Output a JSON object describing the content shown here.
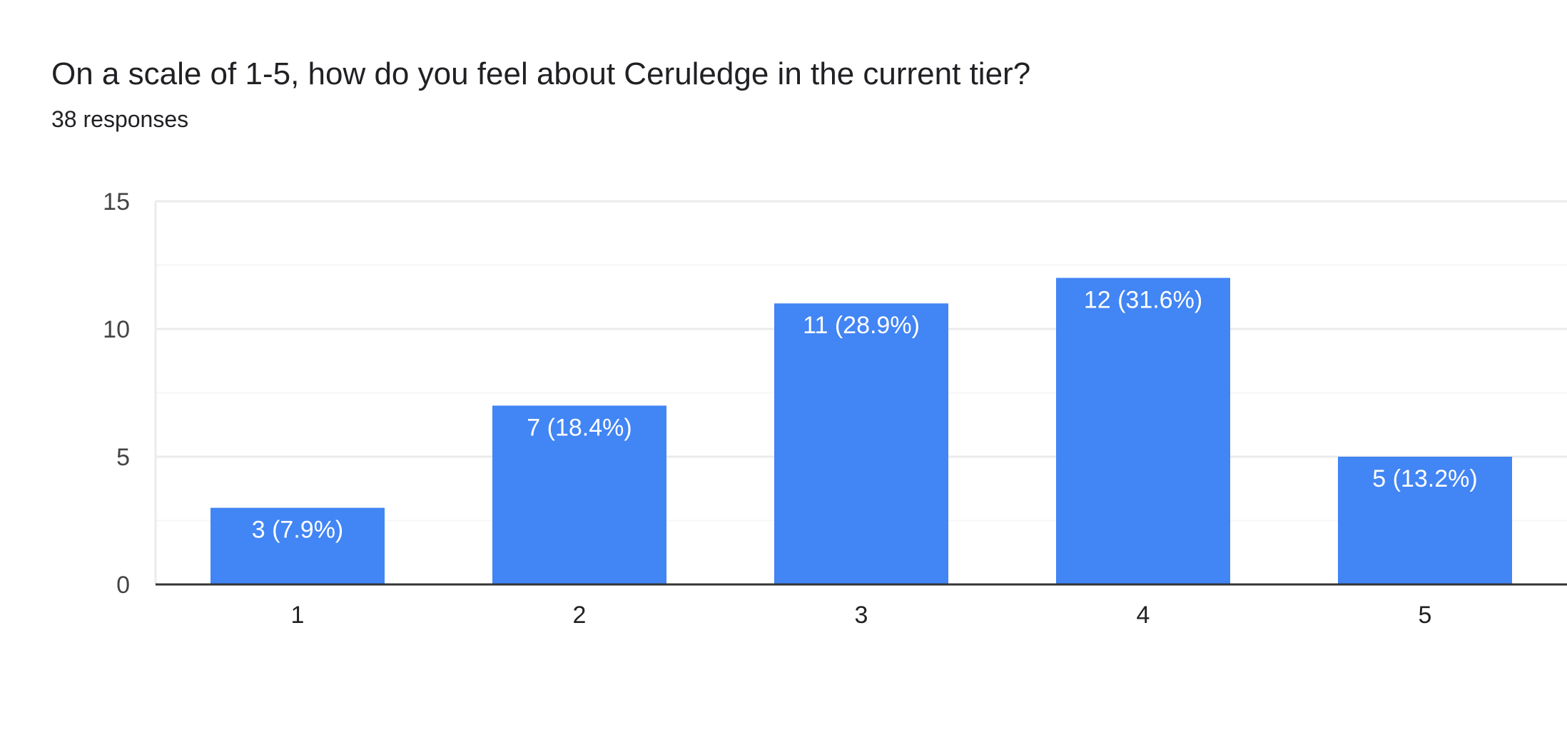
{
  "header": {
    "title": "On a scale of 1-5, how do you feel about Ceruledge in the current tier?",
    "responses": "38 responses"
  },
  "colors": {
    "bar": "#4285F4",
    "gridline": "#EBEBEB",
    "minor_gridline": "#F6F6F6",
    "baseline": "#333333"
  },
  "chart_data": {
    "type": "bar",
    "categories": [
      "1",
      "2",
      "3",
      "4",
      "5"
    ],
    "values": [
      3,
      7,
      11,
      12,
      5
    ],
    "data_labels": [
      "3 (7.9%)",
      "7 (18.4%)",
      "11 (28.9%)",
      "12 (31.6%)",
      "5 (13.2%)"
    ],
    "ylim": [
      0,
      15
    ],
    "yticks": [
      "0",
      "5",
      "10",
      "15"
    ],
    "ytick_values": [
      0,
      5,
      10,
      15
    ],
    "minor_gridlines": [
      2.5,
      7.5,
      12.5
    ],
    "grid": true,
    "title": "",
    "xlabel": "",
    "ylabel": ""
  }
}
